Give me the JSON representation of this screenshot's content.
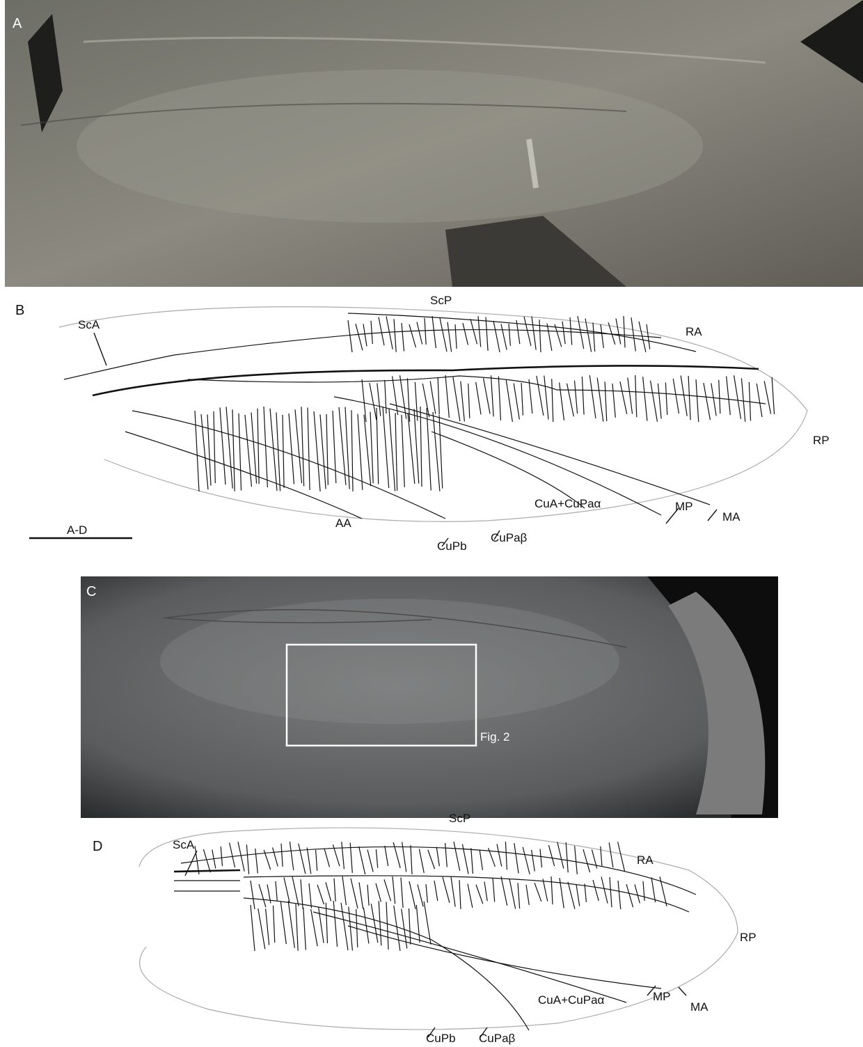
{
  "panels": [
    {
      "label": "A"
    },
    {
      "label": "B",
      "vein_labels": [
        "ScA",
        "ScP",
        "RA",
        "RP",
        "MA",
        "MP",
        "CuA+CuPaα",
        "CuPaβ",
        "CuPb",
        "AA"
      ],
      "scale_bar": "A-D"
    },
    {
      "label": "C",
      "inset": "Fig. 2"
    },
    {
      "label": "D",
      "vein_labels": [
        "ScA",
        "ScP",
        "RA",
        "RP",
        "MA",
        "MP",
        "CuA+CuPaα",
        "CuPaβ",
        "CuPb"
      ]
    }
  ]
}
